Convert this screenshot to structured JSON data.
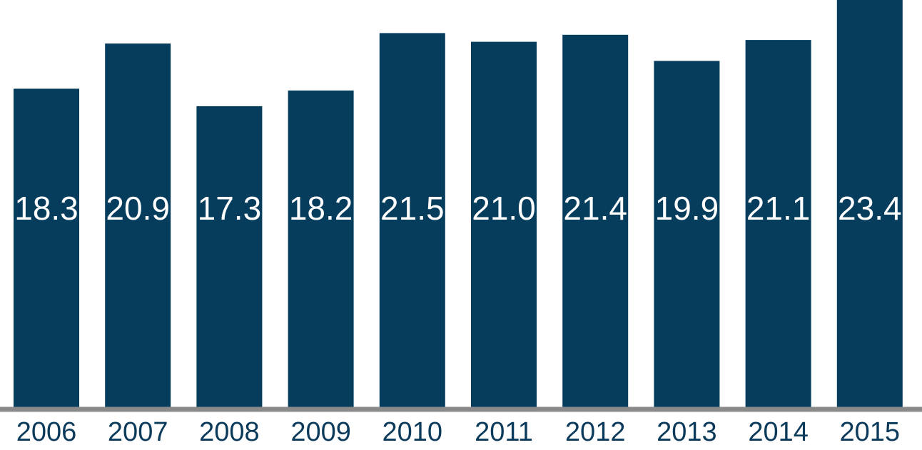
{
  "chart_data": {
    "type": "bar",
    "categories": [
      "2006",
      "2007",
      "2008",
      "2009",
      "2010",
      "2011",
      "2012",
      "2013",
      "2014",
      "2015"
    ],
    "values": [
      18.3,
      20.9,
      17.3,
      18.2,
      21.5,
      21.0,
      21.4,
      19.9,
      21.1,
      23.4
    ],
    "value_labels": [
      "18.3",
      "20.9",
      "17.3",
      "18.2",
      "21.5",
      "21.0",
      "21.4",
      "19.9",
      "21.1",
      "23.4"
    ],
    "title": "",
    "xlabel": "",
    "ylabel": "",
    "ylim": [
      0,
      23.4
    ],
    "grid": false,
    "legend": "none",
    "colors": {
      "bar": "#063d5c",
      "bar_label": "#ffffff",
      "tick_label": "#0b3a5a",
      "axis": "#8a8a8a"
    }
  }
}
